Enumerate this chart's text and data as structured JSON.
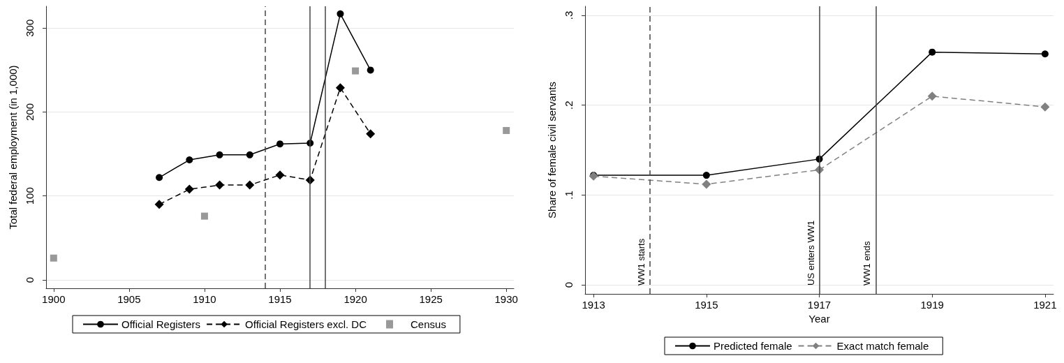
{
  "chart_data": [
    {
      "type": "line",
      "ylabel": "Total federal employment (in 1,000)",
      "xlim": [
        1899.5,
        1930.5
      ],
      "xticks": [
        1900,
        1905,
        1910,
        1915,
        1920,
        1925,
        1930
      ],
      "ylim": [
        -10,
        326
      ],
      "yticks": [
        0,
        100,
        200,
        300
      ],
      "grid": "y",
      "legend": "bottom",
      "series": [
        {
          "name": "Official Registers",
          "color": "#000000",
          "marker": "circle",
          "line_style": "solid",
          "x": [
            1907,
            1909,
            1911,
            1913,
            1915,
            1917,
            1919,
            1921
          ],
          "values": [
            122,
            143,
            149,
            149,
            162,
            163,
            317,
            250
          ]
        },
        {
          "name": "Official Registers excl. DC",
          "color": "#000000",
          "marker": "diamond",
          "line_style": "dashed",
          "x": [
            1907,
            1909,
            1911,
            1913,
            1915,
            1917,
            1919,
            1921
          ],
          "values": [
            90,
            108,
            113,
            113,
            125,
            119,
            229,
            174
          ]
        },
        {
          "name": "Census",
          "type": "scatter",
          "color": "#808080",
          "marker": "square",
          "x": [
            1900,
            1910,
            1920,
            1930
          ],
          "values": [
            26,
            76,
            249,
            178
          ]
        }
      ],
      "ref_lines": [
        {
          "axis": "x",
          "value": 1914,
          "line_style": "dashed",
          "color": "#444444"
        },
        {
          "axis": "x",
          "value": 1917,
          "line_style": "solid",
          "color": "#444444"
        },
        {
          "axis": "x",
          "value": 1918,
          "line_style": "solid",
          "color": "#444444"
        }
      ]
    },
    {
      "type": "line",
      "xlabel": "Year",
      "ylabel": "Share of female civil servants",
      "xlim": [
        1912.85,
        1921.15
      ],
      "xticks": [
        1913,
        1915,
        1917,
        1919,
        1921
      ],
      "ylim": [
        -0.01,
        0.31
      ],
      "yticks": [
        {
          "value": 0,
          "label": "0"
        },
        {
          "value": 0.1,
          "label": ".1"
        },
        {
          "value": 0.2,
          "label": ".2"
        },
        {
          "value": 0.3,
          "label": ".3"
        }
      ],
      "grid": "y",
      "legend": "bottom",
      "series": [
        {
          "name": "Predicted female",
          "color": "#000000",
          "marker": "circle",
          "line_style": "solid",
          "x": [
            1913,
            1915,
            1917,
            1919,
            1921
          ],
          "values": [
            0.122,
            0.122,
            0.14,
            0.259,
            0.257
          ]
        },
        {
          "name": "Exact match female",
          "color": "#808080",
          "marker": "diamond",
          "line_style": "dashed",
          "x": [
            1913,
            1915,
            1917,
            1919,
            1921
          ],
          "values": [
            0.121,
            0.112,
            0.128,
            0.21,
            0.198
          ]
        }
      ],
      "ref_lines": [
        {
          "axis": "x",
          "value": 1914,
          "label": "WW1 starts",
          "line_style": "dashed",
          "color": "#444444"
        },
        {
          "axis": "x",
          "value": 1917,
          "label": "US enters WW1",
          "line_style": "solid",
          "color": "#444444"
        },
        {
          "axis": "x",
          "value": 1918,
          "label": "WW1 ends",
          "line_style": "solid",
          "color": "#444444"
        }
      ]
    }
  ]
}
